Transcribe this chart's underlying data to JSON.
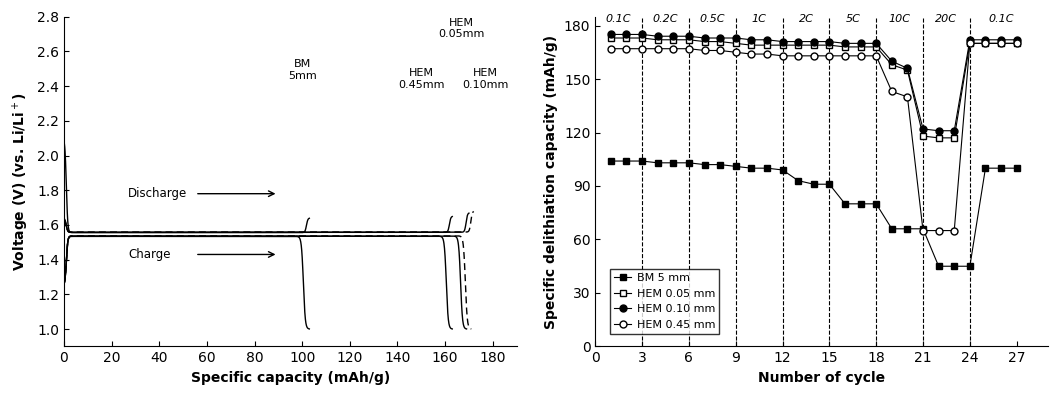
{
  "left_chart": {
    "xlabel": "Specific capacity (mAh/g)",
    "ylabel": "Voltage (V) (vs. Li/Li$^+$)",
    "xlim": [
      0,
      190
    ],
    "ylim": [
      0.9,
      2.8
    ],
    "xticks": [
      0,
      20,
      40,
      60,
      80,
      100,
      120,
      140,
      160,
      180
    ],
    "yticks": [
      1.0,
      1.2,
      1.4,
      1.6,
      1.8,
      2.0,
      2.2,
      2.4,
      2.6,
      2.8
    ]
  },
  "right_chart": {
    "xlabel": "Number of cycle",
    "ylabel": "Specific delithiation capacity (mAh/g)",
    "xlim": [
      0,
      29
    ],
    "ylim": [
      0,
      185
    ],
    "yticks": [
      0,
      30,
      60,
      90,
      120,
      150,
      180
    ],
    "xticks": [
      0,
      3,
      6,
      9,
      12,
      15,
      18,
      21,
      24,
      27
    ],
    "vlines": [
      3,
      6,
      9,
      12,
      15,
      18,
      21,
      24
    ],
    "c_rate_labels": [
      {
        "text": "0.1C",
        "x": 1.5
      },
      {
        "text": "0.2C",
        "x": 4.5
      },
      {
        "text": "0.5C",
        "x": 7.5
      },
      {
        "text": "1C",
        "x": 10.5
      },
      {
        "text": "2C",
        "x": 13.5
      },
      {
        "text": "5C",
        "x": 16.5
      },
      {
        "text": "10C",
        "x": 19.5
      },
      {
        "text": "20C",
        "x": 22.5
      },
      {
        "text": "0.1C",
        "x": 26.0
      }
    ],
    "BM_5mm_cycles": [
      1,
      2,
      3,
      4,
      5,
      6,
      7,
      8,
      9,
      10,
      11,
      12,
      13,
      14,
      15,
      16,
      17,
      18,
      19,
      20,
      21,
      22,
      23,
      24,
      25,
      26,
      27
    ],
    "BM_5mm_cap": [
      104,
      104,
      104,
      103,
      103,
      103,
      102,
      102,
      101,
      100,
      100,
      99,
      93,
      91,
      91,
      80,
      80,
      80,
      66,
      66,
      66,
      45,
      45,
      45,
      100,
      100,
      100
    ],
    "HEM_005_cycles": [
      1,
      2,
      3,
      4,
      5,
      6,
      7,
      8,
      9,
      10,
      11,
      12,
      13,
      14,
      15,
      16,
      17,
      18,
      19,
      20,
      21,
      22,
      23,
      24,
      25,
      26,
      27
    ],
    "HEM_005_cap": [
      173,
      173,
      173,
      172,
      172,
      172,
      171,
      171,
      170,
      169,
      169,
      169,
      169,
      169,
      169,
      168,
      168,
      168,
      158,
      155,
      118,
      117,
      117,
      170,
      170,
      170,
      170
    ],
    "HEM_010_cycles": [
      1,
      2,
      3,
      4,
      5,
      6,
      7,
      8,
      9,
      10,
      11,
      12,
      13,
      14,
      15,
      16,
      17,
      18,
      19,
      20,
      21,
      22,
      23,
      24,
      25,
      26,
      27
    ],
    "HEM_010_cap": [
      175,
      175,
      175,
      174,
      174,
      174,
      173,
      173,
      173,
      172,
      172,
      171,
      171,
      171,
      171,
      170,
      170,
      170,
      160,
      156,
      122,
      121,
      121,
      172,
      172,
      172,
      172
    ],
    "HEM_045_cycles": [
      1,
      2,
      3,
      4,
      5,
      6,
      7,
      8,
      9,
      10,
      11,
      12,
      13,
      14,
      15,
      16,
      17,
      18,
      19,
      20,
      21,
      22,
      23,
      24,
      25,
      26,
      27
    ],
    "HEM_045_cap": [
      167,
      167,
      167,
      167,
      167,
      167,
      166,
      166,
      165,
      164,
      164,
      163,
      163,
      163,
      163,
      163,
      163,
      163,
      143,
      140,
      65,
      65,
      65,
      170,
      170,
      170,
      170
    ]
  }
}
